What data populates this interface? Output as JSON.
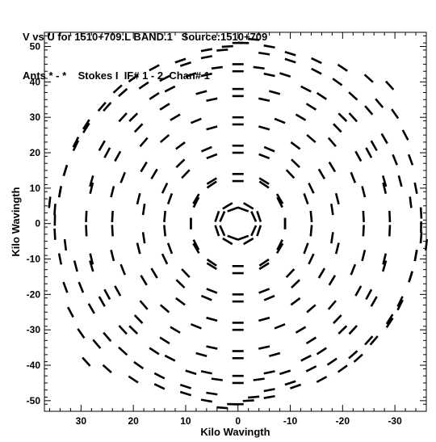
{
  "header": {
    "line1": "V vs U for 1510+709.L BAND.1   Source:1510+709",
    "line2": "Ants * - *    Stokes I  IF# 1 - 2  Chan# 1"
  },
  "chart_data": {
    "type": "scatter",
    "title": "V vs U for 1510+709.L BAND.1   Source:1510+709",
    "subtitle": "Ants * - *    Stokes I  IF# 1 - 2  Chan# 1",
    "xlabel": "Kilo Wavingth",
    "ylabel": "Kilo Wavingth",
    "xlim": [
      37,
      -36
    ],
    "ylim": [
      -53,
      54
    ],
    "x_reversed": true,
    "xticks": [
      30,
      20,
      10,
      0,
      -10,
      -20,
      -30
    ],
    "yticks": [
      50,
      40,
      30,
      20,
      10,
      0,
      -10,
      -20,
      -30,
      -40,
      -50
    ],
    "grid": false,
    "marker": "short line segments (uv-track arcs)",
    "color": "#000000",
    "series": [
      {
        "points_uv_klambda": [
          [
            0,
            51
          ],
          [
            3,
            49
          ],
          [
            6,
            47
          ],
          [
            -3,
            52
          ],
          [
            -6,
            50
          ],
          [
            -10,
            48
          ],
          [
            10,
            45
          ],
          [
            14,
            41
          ],
          [
            18,
            39
          ],
          [
            -15,
            46
          ],
          [
            -20,
            44
          ],
          [
            -25,
            41
          ],
          [
            -29,
            39
          ],
          [
            22,
            37
          ],
          [
            25,
            33
          ],
          [
            -27,
            34
          ],
          [
            -30,
            31
          ],
          [
            29,
            28
          ],
          [
            31,
            23
          ],
          [
            -32,
            25
          ],
          [
            -33,
            18
          ],
          [
            33,
            15
          ],
          [
            34,
            9
          ],
          [
            -34,
            10
          ],
          [
            -35,
            3
          ],
          [
            36,
            6
          ],
          [
            35,
            1
          ],
          [
            -35,
            -4
          ],
          [
            -34,
            -9
          ],
          [
            33,
            -6
          ],
          [
            31,
            -12
          ],
          [
            -33,
            -15
          ],
          [
            -31,
            -22
          ],
          [
            30,
            -18
          ],
          [
            28,
            -24
          ],
          [
            -29,
            -27
          ],
          [
            -26,
            -33
          ],
          [
            25,
            -32
          ],
          [
            22,
            -36
          ],
          [
            -23,
            -38
          ],
          [
            -20,
            -41
          ],
          [
            19,
            -40
          ],
          [
            15,
            -43
          ],
          [
            -16,
            -44
          ],
          [
            -11,
            -46
          ],
          [
            10,
            -46
          ],
          [
            5,
            -48
          ],
          [
            -6,
            -49
          ],
          [
            -2,
            -50
          ],
          [
            1,
            -51
          ],
          [
            0,
            45
          ],
          [
            4,
            44
          ],
          [
            -4,
            44
          ],
          [
            9,
            42
          ],
          [
            -9,
            42
          ],
          [
            16,
            36
          ],
          [
            -16,
            36
          ],
          [
            22,
            30
          ],
          [
            -22,
            30
          ],
          [
            26,
            22
          ],
          [
            -26,
            22
          ],
          [
            28,
            12
          ],
          [
            -28,
            12
          ],
          [
            29,
            2
          ],
          [
            -29,
            2
          ],
          [
            28,
            -10
          ],
          [
            -28,
            -10
          ],
          [
            25,
            -20
          ],
          [
            -25,
            -20
          ],
          [
            20,
            -30
          ],
          [
            -20,
            -30
          ],
          [
            13,
            -38
          ],
          [
            -13,
            -38
          ],
          [
            6,
            -42
          ],
          [
            -6,
            -42
          ],
          [
            0,
            -43
          ],
          [
            0,
            38
          ],
          [
            7,
            37
          ],
          [
            -7,
            37
          ],
          [
            14,
            33
          ],
          [
            -14,
            33
          ],
          [
            19,
            27
          ],
          [
            -19,
            27
          ],
          [
            23,
            19
          ],
          [
            -23,
            19
          ],
          [
            24,
            9
          ],
          [
            -24,
            9
          ],
          [
            24,
            -2
          ],
          [
            -24,
            -2
          ],
          [
            22,
            -13
          ],
          [
            -22,
            -13
          ],
          [
            18,
            -23
          ],
          [
            -18,
            -23
          ],
          [
            12,
            -30
          ],
          [
            -12,
            -30
          ],
          [
            5,
            -35
          ],
          [
            -5,
            -35
          ],
          [
            0,
            -36
          ],
          [
            0,
            30
          ],
          [
            8,
            29
          ],
          [
            -8,
            29
          ],
          [
            14,
            24
          ],
          [
            -14,
            24
          ],
          [
            18,
            16
          ],
          [
            -18,
            16
          ],
          [
            19,
            7
          ],
          [
            -19,
            7
          ],
          [
            18,
            -4
          ],
          [
            -18,
            -4
          ],
          [
            16,
            -14
          ],
          [
            -16,
            -14
          ],
          [
            11,
            -22
          ],
          [
            -11,
            -22
          ],
          [
            5,
            -27
          ],
          [
            -5,
            -27
          ],
          [
            0,
            -28
          ],
          [
            0,
            22
          ],
          [
            6,
            21
          ],
          [
            -6,
            21
          ],
          [
            11,
            17
          ],
          [
            -11,
            17
          ],
          [
            14,
            10
          ],
          [
            -14,
            10
          ],
          [
            14,
            2
          ],
          [
            -14,
            2
          ],
          [
            13,
            -7
          ],
          [
            -13,
            -7
          ],
          [
            10,
            -14
          ],
          [
            -10,
            -14
          ],
          [
            5,
            -19
          ],
          [
            -5,
            -19
          ],
          [
            0,
            -20
          ],
          [
            0,
            14
          ],
          [
            5,
            12
          ],
          [
            -5,
            12
          ],
          [
            8,
            7
          ],
          [
            -8,
            7
          ],
          [
            9,
            0
          ],
          [
            -9,
            0
          ],
          [
            8,
            -6
          ],
          [
            -8,
            -6
          ],
          [
            5,
            -11
          ],
          [
            -5,
            -11
          ],
          [
            0,
            -12
          ],
          [
            2,
            5
          ],
          [
            -2,
            5
          ],
          [
            4,
            2
          ],
          [
            -4,
            2
          ],
          [
            3,
            -2
          ],
          [
            -3,
            -2
          ],
          [
            1,
            -4
          ],
          [
            -1,
            -4
          ]
        ]
      }
    ]
  }
}
